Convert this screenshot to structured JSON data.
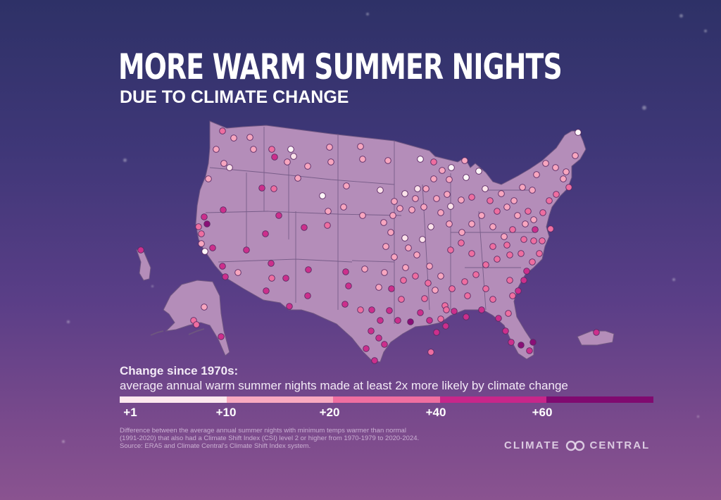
{
  "title": "MORE WARM SUMMER NIGHTS",
  "subtitle": "DUE TO CLIMATE CHANGE",
  "legend": {
    "title": "Change since 1970s:",
    "description": "average annual warm summer nights made at least 2x more likely by climate change",
    "ticks": [
      "+1",
      "+10",
      "+20",
      "+40",
      "+60"
    ],
    "colors": [
      "#fde8ee",
      "#f9a9c0",
      "#f06ea0",
      "#c8268a",
      "#800a70"
    ]
  },
  "footnote": [
    "Difference between the average annual summer nights with minimum temps warmer than normal",
    "(1991-2020) that also had a Climate Shift Index (CSI) level 2 or higher from 1970-1979 to 2020-2024.",
    "Source: ERA5 and Climate Central's Climate Shift Index system."
  ],
  "brand": {
    "left": "CLIMATE",
    "right": "CENTRAL",
    "logo_icon": "infinity-loop-icon"
  },
  "map_colors": {
    "land": "#b48db9",
    "border": "#6d5580",
    "marker_stroke": "#5c2a63"
  }
}
